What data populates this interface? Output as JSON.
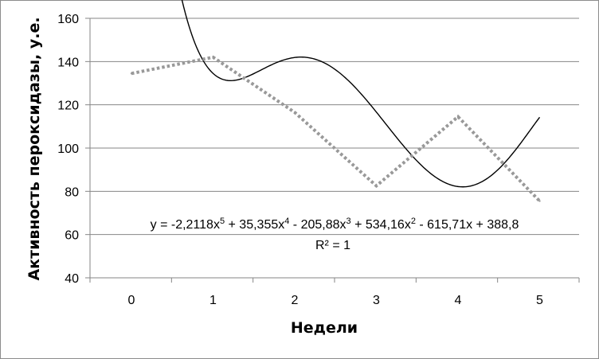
{
  "chart_data": {
    "type": "line",
    "title": "",
    "xlabel": "Недели",
    "ylabel": "Активность пероксидазы, у.е.",
    "categories": [
      "0",
      "1",
      "2",
      "3",
      "4",
      "5"
    ],
    "ylim": [
      40,
      160
    ],
    "yticks": [
      "40",
      "60",
      "80",
      "100",
      "120",
      "140",
      "160"
    ],
    "grid": "horizontal",
    "series": [
      {
        "values": [
          134.5,
          142,
          116.5,
          82.5,
          114.5,
          75.5
        ],
        "style": "dotted",
        "color": "#999999"
      }
    ],
    "trendline": {
      "type": "polynomial",
      "order": 5,
      "coefficients": [
        388.8,
        -615.71,
        534.16,
        -205.88,
        35.355,
        -2.2118
      ],
      "style": "solid",
      "color": "#000000"
    },
    "annotations": {
      "equation_parts": {
        "p1": "y = -2,2118x",
        "e1": "5",
        "p2": " + 35,355x",
        "e2": "4",
        "p3": " - 205,88x",
        "e3": "3",
        "p4": " + 534,16x",
        "e4": "2",
        "p5": " - 615,71x + 388,8"
      },
      "r_squared": "R² = 1"
    }
  },
  "colors": {
    "gridline": "#868686",
    "series": "#999999",
    "trendline": "#000000"
  }
}
